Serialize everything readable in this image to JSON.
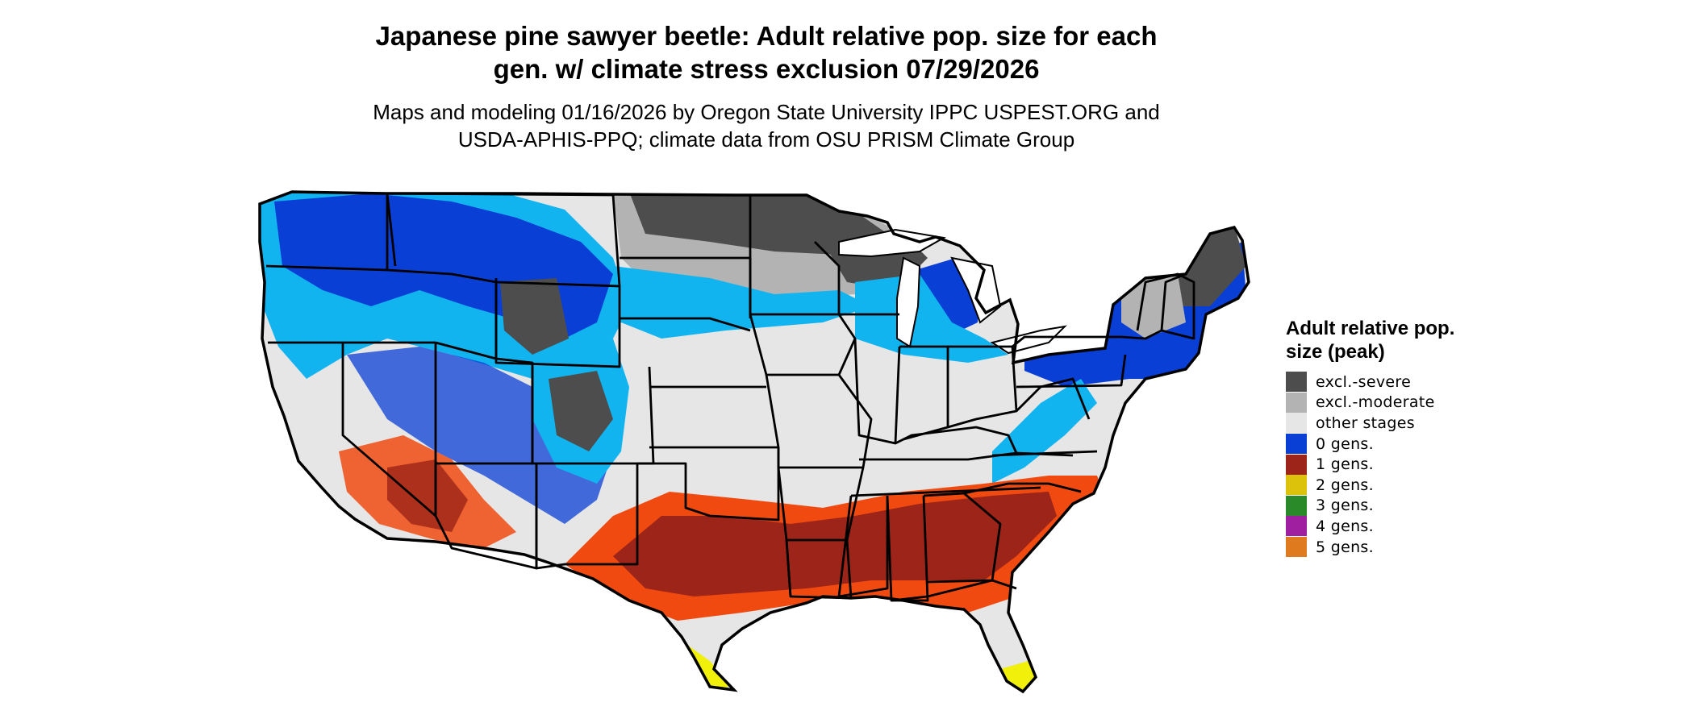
{
  "title_line1": "Japanese pine sawyer beetle: Adult relative pop. size for each",
  "title_line2": "gen. w/ climate stress exclusion 07/29/2026",
  "subtitle_line1": "Maps and modeling 01/16/2026 by Oregon State University IPPC USPEST.ORG and",
  "subtitle_line2": "USDA-APHIS-PPQ; climate data from OSU PRISM Climate Group",
  "legend": {
    "title": "Adult relative pop. size (peak)",
    "items": [
      {
        "label": "excl.-severe",
        "color": "#4d4d4d"
      },
      {
        "label": "excl.-moderate",
        "color": "#b3b3b3"
      },
      {
        "label": "other stages",
        "color": "#e6e6e6"
      },
      {
        "label": "0 gens.",
        "color": "#0a3fd6"
      },
      {
        "label": "1 gens.",
        "color": "#9c2418"
      },
      {
        "label": "2 gens.",
        "color": "#dcc20a"
      },
      {
        "label": "3 gens.",
        "color": "#2a8a2a"
      },
      {
        "label": "4 gens.",
        "color": "#a01fa0"
      },
      {
        "label": "5 gens.",
        "color": "#e07a1e"
      }
    ]
  },
  "map_colors": {
    "land": "#e6e6e6",
    "excl_severe": "#4d4d4d",
    "excl_moderate": "#b3b3b3",
    "zero_gens": "#0a3fd6",
    "zero_gens_light": "#12b4f0",
    "one_gens": "#9c2418",
    "one_gens_edge": "#f04a10",
    "two_gens": "#f0f00a",
    "border": "#000000"
  }
}
